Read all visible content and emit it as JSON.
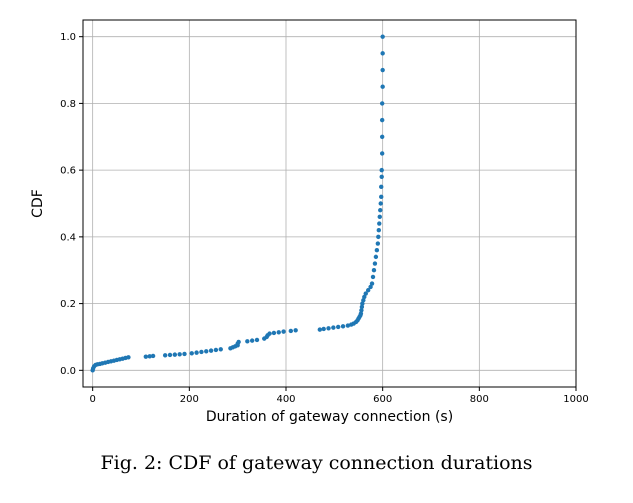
{
  "caption": "Fig. 2: CDF of gateway connection durations",
  "chart_data": {
    "type": "scatter",
    "title": "",
    "xlabel": "Duration of gateway connection (s)",
    "ylabel": "CDF",
    "xlim": [
      -20,
      1000
    ],
    "ylim": [
      -0.05,
      1.05
    ],
    "x_ticks": [
      0,
      200,
      400,
      600,
      800,
      1000
    ],
    "x_tick_labels": [
      "0",
      "200",
      "400",
      "600",
      "800",
      "1000"
    ],
    "y_ticks": [
      0.0,
      0.2,
      0.4,
      0.6,
      0.8,
      1.0
    ],
    "y_tick_labels": [
      "0.0",
      "0.2",
      "0.4",
      "0.6",
      "0.8",
      "1.0"
    ],
    "grid": true,
    "marker_color": "#1f77b4",
    "points": [
      [
        0,
        0.0
      ],
      [
        1,
        0.006
      ],
      [
        3,
        0.012
      ],
      [
        6,
        0.016
      ],
      [
        10,
        0.018
      ],
      [
        15,
        0.019
      ],
      [
        20,
        0.021
      ],
      [
        26,
        0.023
      ],
      [
        32,
        0.025
      ],
      [
        38,
        0.027
      ],
      [
        44,
        0.029
      ],
      [
        50,
        0.031
      ],
      [
        56,
        0.033
      ],
      [
        62,
        0.035
      ],
      [
        68,
        0.037
      ],
      [
        74,
        0.039
      ],
      [
        110,
        0.041
      ],
      [
        118,
        0.042
      ],
      [
        125,
        0.043
      ],
      [
        150,
        0.045
      ],
      [
        160,
        0.046
      ],
      [
        170,
        0.047
      ],
      [
        180,
        0.048
      ],
      [
        190,
        0.049
      ],
      [
        205,
        0.051
      ],
      [
        215,
        0.053
      ],
      [
        225,
        0.055
      ],
      [
        235,
        0.057
      ],
      [
        245,
        0.059
      ],
      [
        255,
        0.061
      ],
      [
        265,
        0.063
      ],
      [
        285,
        0.066
      ],
      [
        290,
        0.069
      ],
      [
        295,
        0.072
      ],
      [
        300,
        0.075
      ],
      [
        300,
        0.08
      ],
      [
        302,
        0.085
      ],
      [
        320,
        0.087
      ],
      [
        330,
        0.089
      ],
      [
        340,
        0.091
      ],
      [
        355,
        0.095
      ],
      [
        360,
        0.1
      ],
      [
        362,
        0.105
      ],
      [
        366,
        0.11
      ],
      [
        375,
        0.112
      ],
      [
        385,
        0.114
      ],
      [
        395,
        0.116
      ],
      [
        410,
        0.118
      ],
      [
        420,
        0.12
      ],
      [
        470,
        0.122
      ],
      [
        478,
        0.124
      ],
      [
        488,
        0.126
      ],
      [
        498,
        0.128
      ],
      [
        508,
        0.13
      ],
      [
        518,
        0.132
      ],
      [
        528,
        0.134
      ],
      [
        535,
        0.137
      ],
      [
        540,
        0.14
      ],
      [
        545,
        0.145
      ],
      [
        548,
        0.15
      ],
      [
        550,
        0.155
      ],
      [
        552,
        0.16
      ],
      [
        554,
        0.165
      ],
      [
        555,
        0.17
      ],
      [
        556,
        0.18
      ],
      [
        557,
        0.19
      ],
      [
        558,
        0.2
      ],
      [
        560,
        0.21
      ],
      [
        562,
        0.22
      ],
      [
        565,
        0.23
      ],
      [
        570,
        0.24
      ],
      [
        575,
        0.25
      ],
      [
        578,
        0.26
      ],
      [
        580,
        0.28
      ],
      [
        582,
        0.3
      ],
      [
        584,
        0.32
      ],
      [
        586,
        0.34
      ],
      [
        588,
        0.36
      ],
      [
        590,
        0.38
      ],
      [
        591,
        0.4
      ],
      [
        592,
        0.42
      ],
      [
        593,
        0.44
      ],
      [
        594,
        0.46
      ],
      [
        595,
        0.48
      ],
      [
        596,
        0.5
      ],
      [
        597,
        0.52
      ],
      [
        597,
        0.55
      ],
      [
        598,
        0.58
      ],
      [
        598,
        0.6
      ],
      [
        599,
        0.65
      ],
      [
        599,
        0.7
      ],
      [
        599,
        0.75
      ],
      [
        599,
        0.8
      ],
      [
        600,
        0.85
      ],
      [
        600,
        0.9
      ],
      [
        600,
        0.95
      ],
      [
        600,
        1.0
      ]
    ]
  }
}
